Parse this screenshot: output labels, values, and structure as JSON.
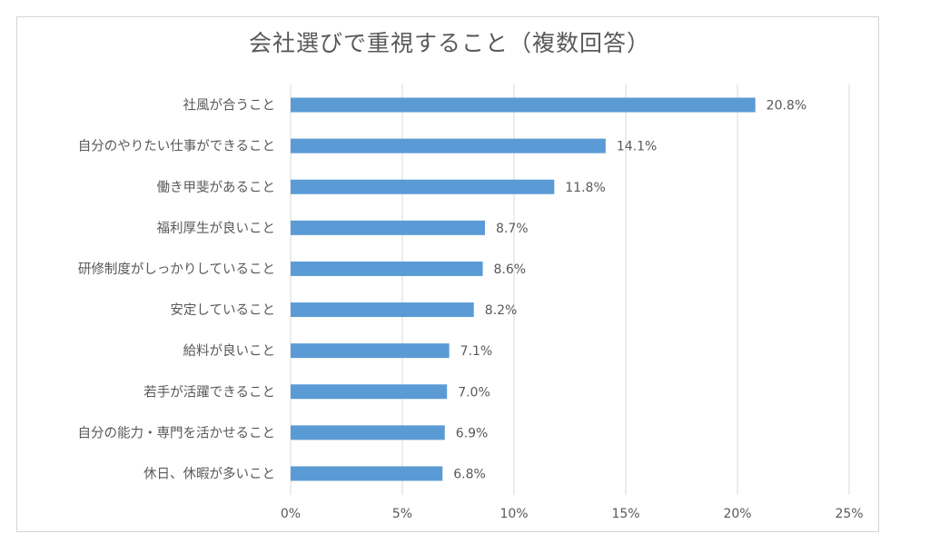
{
  "chart_data": {
    "type": "bar",
    "orientation": "horizontal",
    "title": "会社選びで重視すること（複数回答）",
    "xlabel": "",
    "ylabel": "",
    "xlim": [
      0,
      25
    ],
    "ticks": [
      0,
      5,
      10,
      15,
      20,
      25
    ],
    "tick_labels": [
      "0%",
      "5%",
      "10%",
      "15%",
      "20%",
      "25%"
    ],
    "grid": true,
    "bar_color": "#5B9BD5",
    "categories": [
      "社風が合うこと",
      "自分のやりたい仕事ができること",
      "働き甲斐があること",
      "福利厚生が良いこと",
      "研修制度がしっかりしていること",
      "安定していること",
      "給料が良いこと",
      "若手が活躍できること",
      "自分の能力・専門を活かせること",
      "休日、休暇が多いこと"
    ],
    "values": [
      20.8,
      14.1,
      11.8,
      8.7,
      8.6,
      8.2,
      7.1,
      7.0,
      6.9,
      6.8
    ],
    "value_labels": [
      "20.8%",
      "14.1%",
      "11.8%",
      "8.7%",
      "8.6%",
      "8.2%",
      "7.1%",
      "7.0%",
      "6.9%",
      "6.8%"
    ]
  }
}
